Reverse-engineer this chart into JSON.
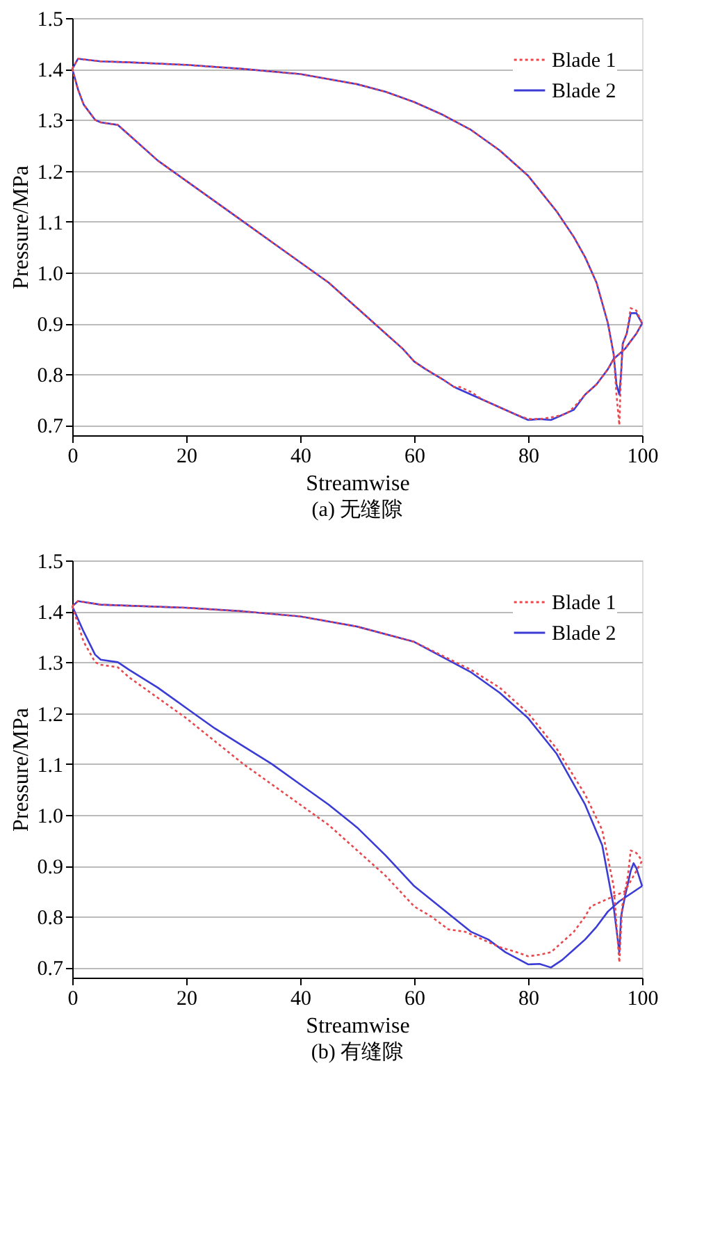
{
  "chart_data": [
    {
      "type": "line",
      "title": "(a) 无缝隙",
      "xlabel": "Streamwise",
      "ylabel": "Pressure/MPa",
      "xlim": [
        0,
        100
      ],
      "ylim": [
        0.68,
        1.5
      ],
      "xticks": [
        0,
        20,
        40,
        60,
        80,
        100
      ],
      "yticks": [
        0.7,
        0.8,
        0.9,
        {
          "value": 1.0,
          "label": "1.0"
        },
        1.1,
        1.2,
        1.3,
        1.4,
        1.5
      ],
      "grid": "y",
      "legend": "top right",
      "marker": "none",
      "series": [
        {
          "name": "Blade 1",
          "color": "#e8474c",
          "line_style": "dotted",
          "x": [
            0,
            1,
            5,
            10,
            20,
            30,
            40,
            50,
            55,
            60,
            65,
            70,
            75,
            80,
            85,
            88,
            90,
            92,
            94,
            95,
            95.5,
            96,
            96.3,
            96.6,
            97.3,
            98,
            99,
            100
          ],
          "values": [
            1.4,
            1.42,
            1.415,
            1.413,
            1.408,
            1.4,
            1.39,
            1.37,
            1.355,
            1.335,
            1.31,
            1.28,
            1.24,
            1.19,
            1.12,
            1.07,
            1.03,
            0.98,
            0.9,
            0.84,
            0.76,
            0.7,
            0.8,
            0.86,
            0.88,
            0.93,
            0.925,
            0.9
          ]
        },
        {
          "color": "#e8474c",
          "line_style": "dotted",
          "x": [
            0,
            1,
            2,
            4,
            5,
            8,
            10,
            15,
            20,
            25,
            30,
            35,
            40,
            45,
            50,
            55,
            58,
            60,
            62,
            65,
            67,
            68,
            70,
            72,
            75,
            78,
            80,
            82,
            84,
            86,
            87,
            88,
            90,
            92,
            94,
            95,
            96,
            97,
            98,
            99,
            100
          ],
          "values": [
            1.4,
            1.36,
            1.33,
            1.3,
            1.295,
            1.29,
            1.27,
            1.22,
            1.18,
            1.14,
            1.1,
            1.06,
            1.02,
            0.98,
            0.93,
            0.88,
            0.85,
            0.825,
            0.81,
            0.79,
            0.775,
            0.775,
            0.765,
            0.75,
            0.735,
            0.72,
            0.712,
            0.712,
            0.715,
            0.72,
            0.725,
            0.735,
            0.76,
            0.78,
            0.81,
            0.83,
            0.84,
            0.85,
            0.865,
            0.88,
            0.9
          ]
        },
        {
          "name": "Blade 2",
          "color": "#3b3bd6",
          "line_style": "solid",
          "x": [
            0,
            1,
            5,
            10,
            20,
            30,
            40,
            50,
            55,
            60,
            65,
            70,
            75,
            80,
            85,
            88,
            90,
            92,
            94,
            95,
            95.5,
            96,
            96.3,
            96.6,
            97.3,
            98,
            99,
            100
          ],
          "values": [
            1.4,
            1.42,
            1.415,
            1.413,
            1.408,
            1.4,
            1.39,
            1.37,
            1.355,
            1.335,
            1.31,
            1.28,
            1.24,
            1.19,
            1.12,
            1.07,
            1.03,
            0.98,
            0.9,
            0.84,
            0.78,
            0.76,
            0.8,
            0.86,
            0.88,
            0.92,
            0.92,
            0.9
          ]
        },
        {
          "color": "#3b3bd6",
          "line_style": "solid",
          "x": [
            0,
            1,
            2,
            4,
            5,
            8,
            10,
            15,
            20,
            25,
            30,
            35,
            40,
            45,
            50,
            55,
            58,
            60,
            62,
            65,
            67,
            70,
            72,
            75,
            78,
            80,
            82,
            84,
            86,
            88,
            90,
            92,
            94,
            95,
            96,
            97,
            98,
            99,
            100
          ],
          "values": [
            1.4,
            1.36,
            1.33,
            1.3,
            1.295,
            1.29,
            1.27,
            1.22,
            1.18,
            1.14,
            1.1,
            1.06,
            1.02,
            0.98,
            0.93,
            0.88,
            0.85,
            0.825,
            0.81,
            0.79,
            0.775,
            0.76,
            0.75,
            0.735,
            0.72,
            0.71,
            0.712,
            0.71,
            0.72,
            0.73,
            0.76,
            0.78,
            0.81,
            0.83,
            0.84,
            0.85,
            0.865,
            0.88,
            0.9
          ]
        }
      ]
    },
    {
      "type": "line",
      "title": "(b) 有缝隙",
      "xlabel": "Streamwise",
      "ylabel": "Pressure/MPa",
      "xlim": [
        0,
        100
      ],
      "ylim": [
        0.68,
        1.5
      ],
      "xticks": [
        0,
        20,
        40,
        60,
        80,
        100
      ],
      "yticks": [
        0.7,
        0.8,
        0.9,
        {
          "value": 1.0,
          "label": "1.0"
        },
        1.1,
        1.2,
        1.3,
        1.4,
        1.5
      ],
      "grid": "y",
      "legend": "top right",
      "marker": "none",
      "series": [
        {
          "name": "Blade 1",
          "color": "#e8474c",
          "line_style": "dotted",
          "x": [
            0,
            1,
            5,
            20,
            30,
            40,
            50,
            60,
            70,
            75,
            80,
            85,
            90,
            93,
            95,
            96,
            96.5,
            97.5,
            98,
            99,
            100
          ],
          "values": [
            1.41,
            1.42,
            1.413,
            1.407,
            1.4,
            1.39,
            1.37,
            1.34,
            1.285,
            1.25,
            1.2,
            1.13,
            1.04,
            0.97,
            0.86,
            0.71,
            0.82,
            0.88,
            0.93,
            0.925,
            0.91
          ]
        },
        {
          "color": "#e8474c",
          "line_style": "dotted",
          "x": [
            0,
            2,
            4,
            5,
            8,
            10,
            15,
            20,
            25,
            30,
            35,
            40,
            45,
            50,
            55,
            60,
            63,
            66,
            69,
            72,
            75,
            78,
            80,
            82,
            84,
            86,
            88,
            90,
            91,
            93,
            95,
            97,
            98,
            99.5,
            100
          ],
          "values": [
            1.41,
            1.34,
            1.3,
            1.295,
            1.29,
            1.27,
            1.23,
            1.19,
            1.145,
            1.1,
            1.06,
            1.02,
            0.98,
            0.93,
            0.88,
            0.82,
            0.8,
            0.775,
            0.77,
            0.755,
            0.74,
            0.73,
            0.722,
            0.725,
            0.73,
            0.75,
            0.77,
            0.8,
            0.82,
            0.83,
            0.84,
            0.85,
            0.87,
            0.9,
            0.91
          ]
        },
        {
          "name": "Blade 2",
          "color": "#3b3bd6",
          "line_style": "solid",
          "x": [
            0,
            1,
            5,
            20,
            30,
            40,
            50,
            60,
            70,
            75,
            80,
            85,
            90,
            93,
            95,
            96,
            96.3,
            97,
            98,
            98.5,
            99,
            100
          ],
          "values": [
            1.41,
            1.42,
            1.413,
            1.407,
            1.4,
            1.39,
            1.37,
            1.34,
            1.28,
            1.24,
            1.19,
            1.12,
            1.02,
            0.94,
            0.82,
            0.73,
            0.8,
            0.84,
            0.89,
            0.905,
            0.895,
            0.86
          ]
        },
        {
          "color": "#3b3bd6",
          "line_style": "solid",
          "x": [
            0,
            2,
            4,
            5,
            8,
            10,
            15,
            20,
            25,
            30,
            35,
            40,
            45,
            50,
            55,
            60,
            65,
            70,
            73,
            76,
            80,
            82,
            84,
            86,
            88,
            90,
            92,
            94,
            96,
            98,
            100
          ],
          "values": [
            1.41,
            1.36,
            1.315,
            1.305,
            1.3,
            1.285,
            1.25,
            1.21,
            1.17,
            1.135,
            1.1,
            1.06,
            1.02,
            0.975,
            0.92,
            0.86,
            0.815,
            0.77,
            0.755,
            0.73,
            0.706,
            0.707,
            0.7,
            0.715,
            0.735,
            0.755,
            0.78,
            0.81,
            0.83,
            0.845,
            0.86
          ]
        }
      ]
    }
  ]
}
